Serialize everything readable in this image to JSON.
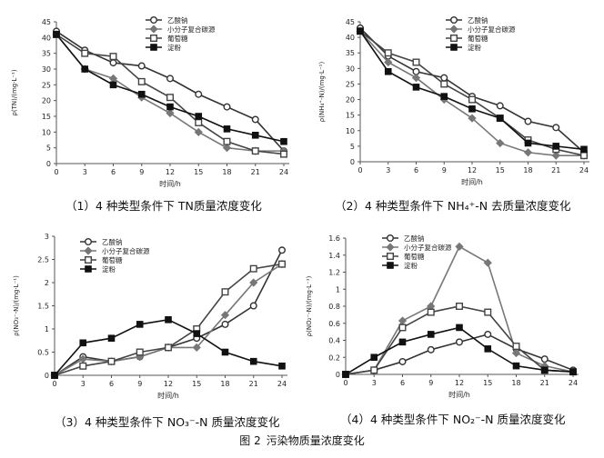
{
  "figure_caption": {
    "label": "图 2",
    "text": "污染物质量浓度变化"
  },
  "legend_names": [
    "乙酸钠",
    "小分子复合碳源",
    "葡萄糖",
    "淀粉"
  ],
  "chart_data": [
    {
      "type": "line",
      "caption_prefix": "（1）",
      "caption_text": "4 种类型条件下 TN质量浓度变化",
      "xlabel": "时间/h",
      "ylabel": "ρ(TN)/(mg·L⁻¹)",
      "x": [
        0,
        3,
        6,
        9,
        12,
        15,
        18,
        21,
        24
      ],
      "xticks": [
        "0",
        "3",
        "6",
        "9",
        "12",
        "15",
        "18",
        "21",
        "24"
      ],
      "ylim": [
        0,
        45
      ],
      "yticks": [
        "0",
        "5",
        "10",
        "15",
        "20",
        "25",
        "30",
        "35",
        "40",
        "45"
      ],
      "series": [
        {
          "name": "乙酸钠",
          "marker": "circle",
          "color": "#333333",
          "values": [
            42,
            36,
            32,
            31,
            27,
            22,
            18,
            14,
            4
          ]
        },
        {
          "name": "小分子复合碳源",
          "marker": "diamond",
          "color": "#777777",
          "values": [
            41,
            30,
            27,
            21,
            16,
            10,
            5,
            4,
            4
          ]
        },
        {
          "name": "葡萄糖",
          "marker": "square",
          "color": "#444444",
          "values": [
            41,
            35,
            34,
            26,
            21,
            13,
            7,
            4,
            3
          ]
        },
        {
          "name": "淀粉",
          "marker": "filledsquare",
          "color": "#111111",
          "values": [
            41,
            30,
            25,
            22,
            18,
            15,
            11,
            9,
            7
          ]
        }
      ]
    },
    {
      "type": "line",
      "caption_prefix": "（2）",
      "caption_text": "4 种类型条件下 NH₄⁺-N 去质量浓度变化",
      "xlabel": "时间/h",
      "ylabel": "ρ(NH₄⁺-N)/(mg·L⁻¹)",
      "x": [
        0,
        3,
        6,
        9,
        12,
        15,
        18,
        21,
        24
      ],
      "xticks": [
        "0",
        "3",
        "6",
        "9",
        "12",
        "15",
        "18",
        "21",
        "24"
      ],
      "ylim": [
        0,
        45
      ],
      "yticks": [
        "0",
        "5",
        "10",
        "15",
        "20",
        "25",
        "30",
        "35",
        "40",
        "45"
      ],
      "series": [
        {
          "name": "乙酸钠",
          "marker": "circle",
          "color": "#333333",
          "values": [
            43,
            34,
            29,
            27,
            21,
            18,
            13,
            11,
            3
          ]
        },
        {
          "name": "小分子复合碳源",
          "marker": "diamond",
          "color": "#777777",
          "values": [
            42,
            32,
            27,
            20,
            14,
            6,
            3,
            2,
            2
          ]
        },
        {
          "name": "葡萄糖",
          "marker": "square",
          "color": "#444444",
          "values": [
            42,
            35,
            32,
            25,
            20,
            14,
            7,
            4,
            2
          ]
        },
        {
          "name": "淀粉",
          "marker": "filledsquare",
          "color": "#111111",
          "values": [
            42,
            29,
            24,
            21,
            17,
            14,
            6,
            5,
            4
          ]
        }
      ]
    },
    {
      "type": "line",
      "caption_prefix": "（3）",
      "caption_text": "4 种类型条件下 NO₃⁻-N 质量浓度变化",
      "xlabel": "时间/h",
      "ylabel": "ρ(NO₃⁻-N)/(mg·L⁻¹)",
      "x": [
        0,
        3,
        6,
        9,
        12,
        15,
        18,
        21,
        24
      ],
      "xticks": [
        "0",
        "3",
        "6",
        "9",
        "12",
        "15",
        "18",
        "21",
        "24"
      ],
      "ylim": [
        0,
        3
      ],
      "yticks": [
        "0",
        "0.5",
        "1",
        "1.5",
        "2",
        "2.5",
        "3"
      ],
      "series": [
        {
          "name": "乙酸钠",
          "marker": "circle",
          "color": "#333333",
          "values": [
            0,
            0.4,
            0.3,
            0.4,
            0.6,
            0.8,
            1.1,
            1.5,
            2.7
          ]
        },
        {
          "name": "小分子复合碳源",
          "marker": "diamond",
          "color": "#777777",
          "values": [
            0,
            0.35,
            0.3,
            0.4,
            0.6,
            0.6,
            1.3,
            2.0,
            2.4
          ]
        },
        {
          "name": "葡萄糖",
          "marker": "square",
          "color": "#444444",
          "values": [
            0,
            0.2,
            0.3,
            0.5,
            0.6,
            1.0,
            1.8,
            2.3,
            2.4
          ]
        },
        {
          "name": "淀粉",
          "marker": "filledsquare",
          "color": "#111111",
          "values": [
            0,
            0.7,
            0.8,
            1.1,
            1.2,
            0.9,
            0.5,
            0.3,
            0.2
          ]
        }
      ]
    },
    {
      "type": "line",
      "caption_prefix": "（4）",
      "caption_text": "4 种类型条件下 NO₂⁻-N 质量浓度变化",
      "xlabel": "时间/h",
      "ylabel": "ρ(NO₂⁻-N)/(mg·L⁻¹)",
      "x": [
        0,
        3,
        6,
        9,
        12,
        15,
        18,
        21,
        24
      ],
      "xticks": [
        "0",
        "3",
        "6",
        "9",
        "12",
        "15",
        "18",
        "21",
        "24"
      ],
      "ylim": [
        0,
        1.6
      ],
      "yticks": [
        "0",
        "0.2",
        "0.4",
        "0.6",
        "0.8",
        "1",
        "1.2",
        "1.4",
        "1.6"
      ],
      "series": [
        {
          "name": "乙酸钠",
          "marker": "circle",
          "color": "#333333",
          "values": [
            0,
            0.05,
            0.15,
            0.29,
            0.38,
            0.47,
            0.3,
            0.18,
            0.05
          ]
        },
        {
          "name": "小分子复合碳源",
          "marker": "diamond",
          "color": "#777777",
          "values": [
            0,
            0.05,
            0.63,
            0.8,
            1.5,
            1.31,
            0.25,
            0.1,
            0.03
          ]
        },
        {
          "name": "葡萄糖",
          "marker": "square",
          "color": "#444444",
          "values": [
            0,
            0.05,
            0.55,
            0.73,
            0.8,
            0.73,
            0.33,
            0.05,
            0.03
          ]
        },
        {
          "name": "淀粉",
          "marker": "filledsquare",
          "color": "#111111",
          "values": [
            0,
            0.2,
            0.38,
            0.47,
            0.55,
            0.3,
            0.1,
            0.05,
            0.03
          ]
        }
      ]
    }
  ]
}
